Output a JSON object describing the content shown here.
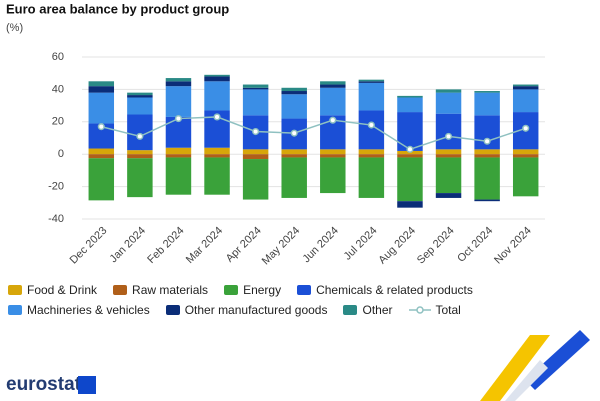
{
  "chart_data": {
    "type": "bar",
    "stacked": true,
    "title": "Euro area balance by product group",
    "subtitle": "(%)",
    "categories": [
      "Dec 2023",
      "Jan 2024",
      "Feb 2024",
      "Mar 2024",
      "Apr 2024",
      "May 2024",
      "Jun 2024",
      "Jul 2024",
      "Aug 2024",
      "Sep 2024",
      "Oct 2024",
      "Nov 2024"
    ],
    "series": [
      {
        "name": "Food & Drink",
        "color": "#d7a60a",
        "values": [
          3.5,
          2.5,
          4,
          4,
          3,
          3,
          3,
          3,
          2,
          3,
          3,
          3
        ]
      },
      {
        "name": "Raw materials",
        "color": "#b05f1a",
        "values": [
          -2.5,
          -2.5,
          -2,
          -2,
          -3,
          -2,
          -2,
          -2,
          -2,
          -2,
          -2,
          -2
        ]
      },
      {
        "name": "Energy",
        "color": "#3aa23a",
        "values": [
          -26,
          -24,
          -23,
          -23,
          -25,
          -25,
          -22,
          -25,
          -27,
          -22,
          -26,
          -24
        ]
      },
      {
        "name": "Chemicals & related products",
        "color": "#1b4fd6",
        "values": [
          15.5,
          22,
          19,
          23,
          21,
          19,
          21,
          24,
          24,
          22,
          21,
          23
        ]
      },
      {
        "name": "Machineries & vehicles",
        "color": "#3a8ee6",
        "values": [
          19,
          10.5,
          19,
          18,
          16,
          15,
          17,
          17,
          9,
          13,
          14,
          14
        ]
      },
      {
        "name": "Other manufactured goods",
        "color": "#0b2d78",
        "values": [
          4,
          1.5,
          3,
          3,
          1,
          2,
          2,
          1,
          -4,
          -3,
          -1,
          2
        ]
      },
      {
        "name": "Other",
        "color": "#2a8a86",
        "values": [
          3,
          1.5,
          2,
          1,
          2,
          2,
          2,
          1,
          1,
          2,
          1,
          1
        ]
      },
      {
        "name": "Total",
        "color": "#8fc1c1",
        "type": "line",
        "values": [
          17,
          11,
          22,
          23,
          14,
          13,
          21,
          18,
          3,
          11,
          8,
          16
        ]
      }
    ],
    "ylim": [
      -40,
      60
    ],
    "yticks": [
      -40,
      -20,
      0,
      20,
      40,
      60
    ],
    "grid": true
  },
  "logo": "eurostat"
}
